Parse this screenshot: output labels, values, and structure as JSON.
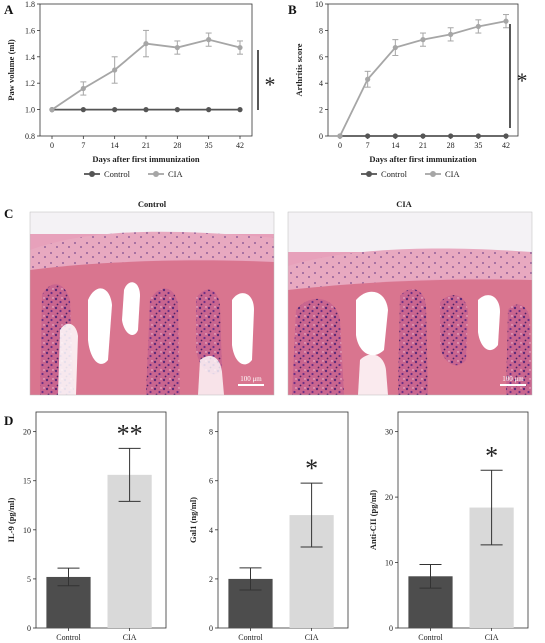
{
  "chart_data": [
    {
      "panel": "A",
      "type": "line",
      "x": [
        0,
        7,
        14,
        21,
        28,
        35,
        42
      ],
      "xlabel": "Days after first immunization",
      "ylabel": "Paw volume (ml)",
      "ylim": [
        0.8,
        1.8
      ],
      "yticks": [
        0.8,
        1.0,
        1.2,
        1.4,
        1.6,
        1.8
      ],
      "series": [
        {
          "name": "Control",
          "values": [
            1.0,
            1.0,
            1.0,
            1.0,
            1.0,
            1.0,
            1.0
          ],
          "errors": [
            0,
            0,
            0,
            0,
            0,
            0,
            0
          ],
          "color": "#555555"
        },
        {
          "name": "CIA",
          "values": [
            1.0,
            1.16,
            1.3,
            1.5,
            1.47,
            1.53,
            1.47
          ],
          "errors": [
            0,
            0.05,
            0.1,
            0.1,
            0.05,
            0.05,
            0.05
          ],
          "color": "#a6a6a6"
        }
      ],
      "annotation": "*",
      "legend": "bottom"
    },
    {
      "panel": "B",
      "type": "line",
      "x": [
        0,
        7,
        14,
        21,
        28,
        35,
        42
      ],
      "xlabel": "Days after first immunization",
      "ylabel": "Arthritis score",
      "ylim": [
        0,
        10
      ],
      "yticks": [
        0,
        2,
        4,
        6,
        8,
        10
      ],
      "series": [
        {
          "name": "Control",
          "values": [
            0,
            0,
            0,
            0,
            0,
            0,
            0
          ],
          "errors": [
            0,
            0,
            0,
            0,
            0,
            0,
            0
          ],
          "color": "#555555"
        },
        {
          "name": "CIA",
          "values": [
            0,
            4.3,
            6.7,
            7.3,
            7.7,
            8.3,
            8.7
          ],
          "errors": [
            0,
            0.6,
            0.6,
            0.5,
            0.5,
            0.5,
            0.5
          ],
          "color": "#a6a6a6"
        }
      ],
      "annotation": "*",
      "legend": "bottom"
    },
    {
      "panel": "D1",
      "type": "bar",
      "categories": [
        "Control",
        "CIA"
      ],
      "values": [
        5.2,
        15.6
      ],
      "errors": [
        0.9,
        2.7
      ],
      "ylabel": "IL-9 (pg/ml)",
      "ylim": [
        0,
        22
      ],
      "yticks": [
        0,
        5,
        10,
        15,
        20
      ],
      "colors": [
        "#4d4d4d",
        "#d9d9d9"
      ],
      "annotation": "**"
    },
    {
      "panel": "D2",
      "type": "bar",
      "categories": [
        "Control",
        "CIA"
      ],
      "values": [
        2.0,
        4.6
      ],
      "errors": [
        0.45,
        1.3
      ],
      "ylabel": "Gal1 (ng/ml)",
      "ylim": [
        0,
        8.8
      ],
      "yticks": [
        0,
        2,
        4,
        6,
        8
      ],
      "colors": [
        "#4d4d4d",
        "#d9d9d9"
      ],
      "annotation": "*"
    },
    {
      "panel": "D3",
      "type": "bar",
      "categories": [
        "Control",
        "CIA"
      ],
      "values": [
        7.9,
        18.4
      ],
      "errors": [
        1.8,
        5.7
      ],
      "ylabel": "Anti-CII (pg/ml)",
      "ylim": [
        0,
        33
      ],
      "yticks": [
        0,
        10,
        20,
        30
      ],
      "colors": [
        "#4d4d4d",
        "#d9d9d9"
      ],
      "annotation": "*"
    }
  ],
  "histology": {
    "panel": "C",
    "left_title": "Control",
    "right_title": "CIA",
    "scale_bar": "100 μm"
  }
}
